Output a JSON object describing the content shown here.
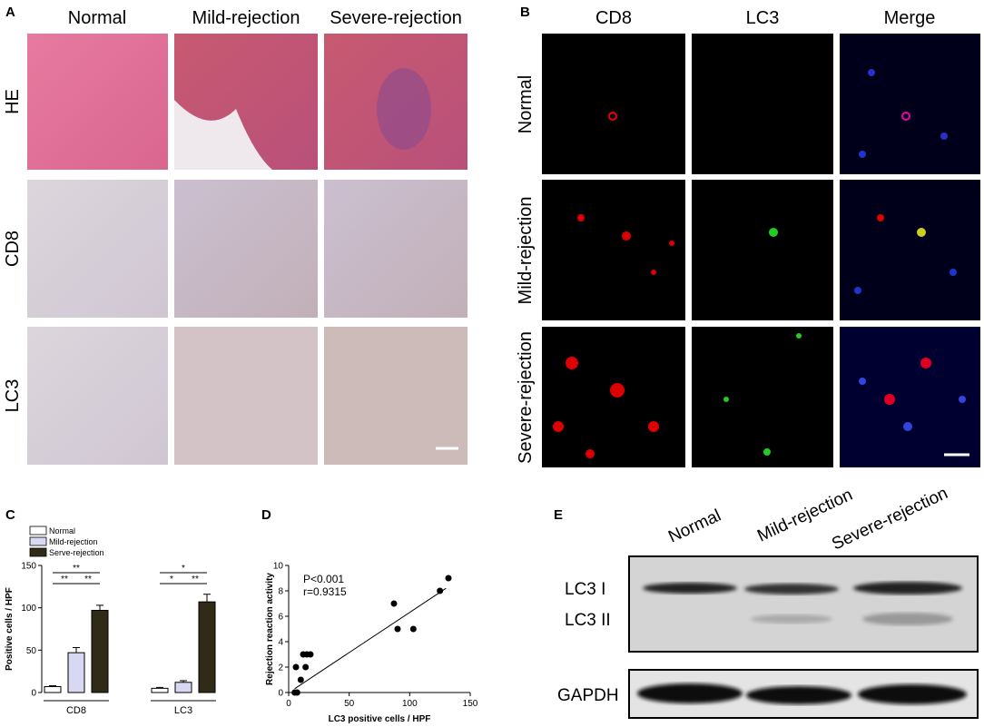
{
  "panels": {
    "A": {
      "label": "A",
      "columns": [
        "Normal",
        "Mild-rejection",
        "Severe-rejection"
      ],
      "rows": [
        "HE",
        "CD8",
        "LC3"
      ]
    },
    "B": {
      "label": "B",
      "columns": [
        "CD8",
        "LC3",
        "Merge"
      ],
      "rows": [
        "Normal",
        "Mild-rejection",
        "Severe-rejection"
      ]
    },
    "E": {
      "label": "E",
      "lanes": [
        "Normal",
        "Mild-rejection",
        "Severe-rejection"
      ],
      "bands": [
        "LC3 I",
        "LC3 II",
        "GAPDH"
      ]
    }
  },
  "chart_data": [
    {
      "type": "bar",
      "panel_label": "C",
      "y_label": "Positive cells / HPF",
      "categories": [
        "CD8",
        "LC3"
      ],
      "series": [
        {
          "name": "Normal",
          "color": "#ffffff",
          "values": [
            7,
            5
          ],
          "errors": [
            1,
            1
          ]
        },
        {
          "name": "Mild-rejection",
          "color": "#d8d8f2",
          "values": [
            47,
            12
          ],
          "errors": [
            6,
            2
          ]
        },
        {
          "name": "Serve-rejection",
          "color": "#2f2b17",
          "values": [
            97,
            107
          ],
          "errors": [
            6,
            9
          ]
        }
      ],
      "ylim": [
        0,
        150
      ],
      "yticks": [
        0,
        50,
        100,
        150
      ],
      "annotations": [
        [
          "**",
          "**",
          "**"
        ],
        [
          "*",
          "*",
          "**"
        ]
      ]
    },
    {
      "type": "scatter",
      "panel_label": "D",
      "y_label": "Rejection reaction activity",
      "x_label": "LC3 positive cells / HPF",
      "annotations": [
        "P<0.001",
        "r=0.9315"
      ],
      "x": [
        5,
        7,
        6,
        10,
        12,
        15,
        14,
        18,
        87,
        90,
        103,
        125,
        132
      ],
      "values": [
        0,
        0,
        2,
        1,
        3,
        3,
        2,
        3,
        7,
        5,
        5,
        8,
        9
      ],
      "fit": {
        "x": [
          5,
          130
        ],
        "values": [
          0.3,
          8.2
        ]
      },
      "color": "#000000",
      "xlim": [
        0,
        150
      ],
      "xticks": [
        0,
        50,
        100,
        150
      ],
      "ylim": [
        0,
        10
      ],
      "yticks": [
        0,
        2,
        4,
        6,
        8,
        10
      ]
    }
  ]
}
